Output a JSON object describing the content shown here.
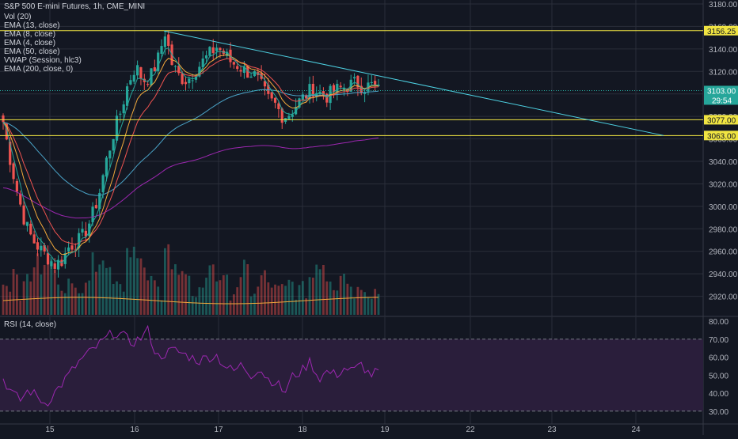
{
  "header": {
    "title": "S&P 500 E-mini Futures, 1h, CME_MINI",
    "studies": [
      "Vol (20)",
      "EMA (13, close)",
      "EMA (8, close)",
      "EMA (4, close)",
      "EMA (50, close)",
      "VWAP (Session, hlc3)",
      "EMA (200, close, 0)"
    ]
  },
  "rsi_pane": {
    "title": "RSI (14, close)"
  },
  "price_axis": {
    "ticks": [
      "3180.00",
      "3160.00",
      "3140.00",
      "3120.00",
      "3100.00",
      "3080.00",
      "3060.00",
      "3040.00",
      "3020.00",
      "3000.00",
      "2980.00",
      "2960.00",
      "2940.00",
      "2920.00"
    ]
  },
  "rsi_axis": {
    "ticks": [
      "80.00",
      "70.00",
      "60.00",
      "50.00",
      "40.00",
      "30.00"
    ]
  },
  "time_axis": {
    "ticks": [
      "15",
      "16",
      "17",
      "18",
      "19",
      "22",
      "23",
      "24"
    ]
  },
  "badges": {
    "resistance_top": "3156.25",
    "current_price": "3103.00",
    "countdown": "29:54",
    "support_1": "3077.00",
    "support_2": "3063.00"
  },
  "colors": {
    "background": "#131722",
    "grid": "#2a2e39",
    "up": "#26a69a",
    "down": "#ef5350",
    "level_line": "#f0e442",
    "trendline": "#4dd0e1",
    "rsi_line": "#9c27b0",
    "rsi_band": "#2a1e3b",
    "ema200": "#9c27b0",
    "ema50": "#4aa3c7",
    "ema13": "#ef5350",
    "ema8": "#f2a93b",
    "ema4": "#26a69a"
  },
  "chart_data": {
    "type": "candlestick",
    "title": "S&P 500 E-mini Futures, 1h, CME_MINI",
    "y_range": [
      2910,
      3185
    ],
    "rsi_range": [
      25,
      82
    ],
    "x_ticks": [
      "15",
      "16",
      "17",
      "18",
      "19",
      "22",
      "23",
      "24"
    ],
    "horizontal_levels": [
      3156.25,
      3077.0,
      3063.0
    ],
    "trendline": {
      "from": {
        "day": "16",
        "price": 3156
      },
      "to": {
        "day": "24",
        "price": 3063
      }
    },
    "last_price": 3103.0,
    "price_waypoints": [
      3075,
      3040,
      3010,
      2985,
      2970,
      2962,
      2955,
      2948,
      2952,
      2965,
      2968,
      2975,
      2990,
      3010,
      3040,
      3065,
      3085,
      3110,
      3125,
      3112,
      3115,
      3130,
      3155,
      3125,
      3115,
      3112,
      3120,
      3128,
      3135,
      3142,
      3136,
      3128,
      3125,
      3120,
      3118,
      3108,
      3095,
      3090,
      3080,
      3083,
      3092,
      3098,
      3105,
      3101,
      3098,
      3103,
      3105,
      3108,
      3110,
      3106,
      3108,
      3103
    ],
    "volume_profile": [
      3,
      5,
      2,
      4,
      6,
      5,
      7,
      4,
      3,
      2,
      3,
      4,
      6,
      7,
      5,
      4,
      3,
      8,
      6,
      4,
      3,
      2,
      9,
      5,
      4,
      3,
      2,
      3,
      6,
      4,
      3,
      2,
      3,
      5,
      2,
      4,
      3,
      2,
      2,
      3,
      2,
      2,
      4,
      6,
      4,
      3,
      5,
      3,
      2,
      3,
      2,
      2
    ],
    "rsi_waypoints": [
      48,
      40,
      36,
      42,
      38,
      34,
      40,
      46,
      52,
      58,
      62,
      66,
      70,
      74,
      72,
      68,
      70,
      75,
      60,
      62,
      64,
      62,
      60,
      58,
      60,
      61,
      55,
      52,
      56,
      50,
      54,
      48,
      46,
      40,
      50,
      52,
      58,
      48,
      52,
      50,
      54,
      52,
      56,
      50,
      52
    ]
  }
}
